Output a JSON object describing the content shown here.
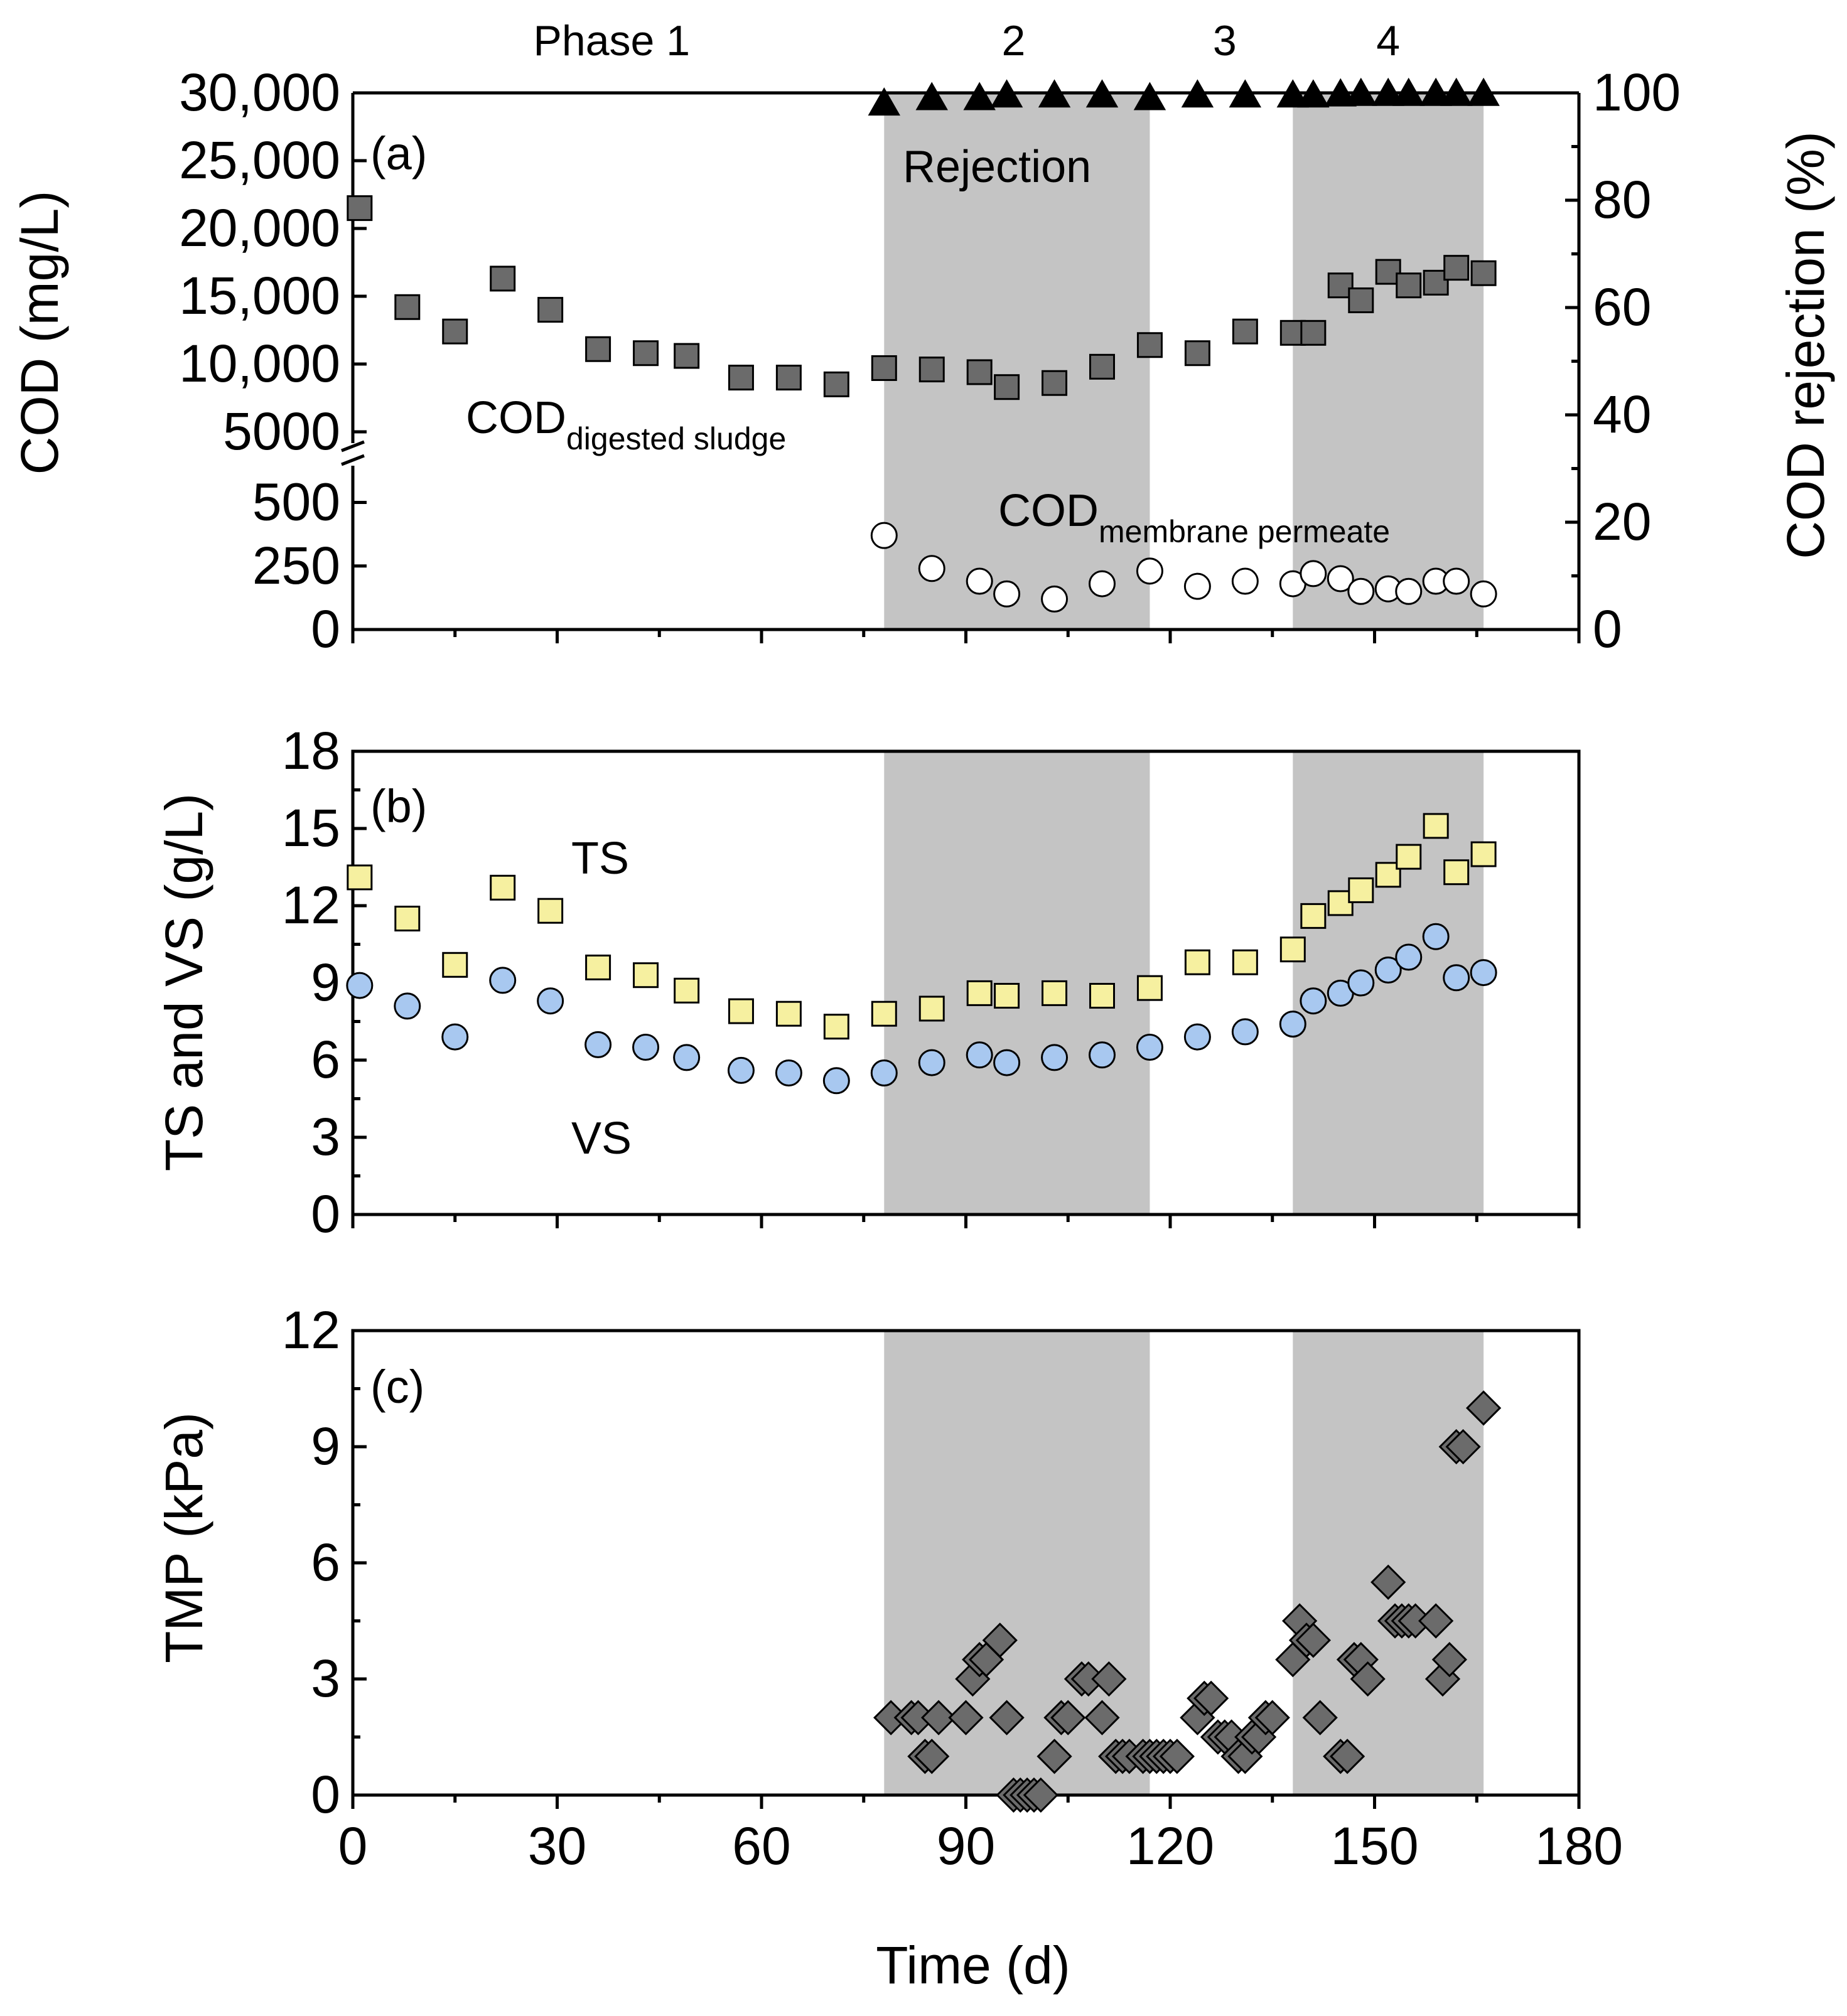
{
  "figure": {
    "xlabel": "Time (d)",
    "xticks": [
      0,
      30,
      60,
      90,
      120,
      150,
      180
    ],
    "xlim": [
      0,
      180
    ]
  },
  "phases": {
    "labels": [
      "Phase 1",
      "2",
      "3",
      "4"
    ],
    "label_day": [
      38,
      97,
      128,
      152
    ],
    "shaded_ranges": [
      [
        78,
        117
      ],
      [
        138,
        166
      ]
    ]
  },
  "chart_data": [
    {
      "panel": "(a)",
      "type": "scatter",
      "ylabel": "COD (mg/L)",
      "ylabel_right": "COD rejection (%)",
      "y_upper": {
        "ylim": [
          5000,
          30000
        ],
        "ticks": [
          5000,
          10000,
          15000,
          20000,
          25000,
          30000
        ],
        "tick_labels": [
          "5000",
          "10,000",
          "15,000",
          "20,000",
          "25,000",
          "30,000"
        ]
      },
      "y_lower": {
        "ylim": [
          0,
          600
        ],
        "ticks": [
          0,
          250,
          500
        ],
        "tick_labels": [
          "0",
          "250",
          "500"
        ]
      },
      "y_right": {
        "ylim": [
          0,
          100
        ],
        "ticks": [
          0,
          20,
          40,
          60,
          80,
          100
        ],
        "tick_labels": [
          "0",
          "20",
          "40",
          "60",
          "80",
          "100"
        ]
      },
      "annotations": {
        "rejection": "Rejection",
        "digested_main": "COD",
        "digested_sub": "digested sludge",
        "permeate_main": "COD",
        "permeate_sub": "membrane permeate"
      },
      "series": [
        {
          "name": "COD digested sludge",
          "axis": "left-upper",
          "marker": "square",
          "color": "#6b6b6b",
          "x": [
            1,
            8,
            15,
            22,
            29,
            36,
            43,
            49,
            57,
            64,
            71,
            78,
            85,
            92,
            96,
            103,
            110,
            117,
            124,
            131,
            138,
            141,
            145,
            148,
            152,
            155,
            159,
            162,
            166
          ],
          "y": [
            21500,
            14200,
            12400,
            16300,
            14000,
            11100,
            10800,
            10600,
            9000,
            9000,
            8500,
            9700,
            9600,
            9400,
            8300,
            8600,
            9800,
            11400,
            10800,
            12400,
            12300,
            12300,
            15800,
            14700,
            16800,
            15800,
            16000,
            17100,
            16700
          ]
        },
        {
          "name": "COD membrane permeate",
          "axis": "left-lower",
          "marker": "circle",
          "color": "#ffffff",
          "x": [
            78,
            85,
            92,
            96,
            103,
            110,
            117,
            124,
            131,
            138,
            141,
            145,
            148,
            152,
            155,
            159,
            162,
            166
          ],
          "y": [
            370,
            240,
            190,
            140,
            120,
            180,
            230,
            170,
            190,
            180,
            220,
            200,
            150,
            160,
            150,
            190,
            190,
            140
          ]
        },
        {
          "name": "Rejection",
          "axis": "right",
          "marker": "triangle",
          "color": "#000000",
          "x": [
            78,
            85,
            92,
            96,
            103,
            110,
            117,
            124,
            131,
            138,
            141,
            145,
            148,
            152,
            155,
            159,
            162,
            166
          ],
          "y": [
            98,
            99,
            99,
            99.5,
            99.5,
            99.5,
            99,
            99.5,
            99.5,
            99.5,
            99.5,
            99.7,
            99.8,
            99.8,
            99.8,
            99.8,
            99.8,
            99.8
          ]
        }
      ]
    },
    {
      "panel": "(b)",
      "type": "scatter",
      "ylabel": "TS and VS (g/L)",
      "ylim": [
        0,
        18
      ],
      "yticks": [
        0,
        3,
        6,
        9,
        12,
        15,
        18
      ],
      "annotations": {
        "ts": "TS",
        "vs": "VS"
      },
      "series": [
        {
          "name": "TS",
          "marker": "square",
          "color": "#f6f0a0",
          "x": [
            1,
            8,
            15,
            22,
            29,
            36,
            43,
            49,
            57,
            64,
            71,
            78,
            85,
            92,
            96,
            103,
            110,
            117,
            124,
            131,
            138,
            141,
            145,
            148,
            152,
            155,
            159,
            162,
            166
          ],
          "y": [
            13.1,
            11.5,
            9.7,
            12.7,
            11.8,
            9.6,
            9.3,
            8.7,
            7.9,
            7.8,
            7.3,
            7.8,
            8.0,
            8.6,
            8.5,
            8.6,
            8.5,
            8.8,
            9.8,
            9.8,
            10.3,
            11.6,
            12.1,
            12.6,
            13.2,
            13.9,
            15.1,
            13.3,
            14.0
          ]
        },
        {
          "name": "VS",
          "marker": "circle",
          "color": "#a8c8f0",
          "x": [
            1,
            8,
            15,
            22,
            29,
            36,
            43,
            49,
            57,
            64,
            71,
            78,
            85,
            92,
            96,
            103,
            110,
            117,
            124,
            131,
            138,
            141,
            145,
            148,
            152,
            155,
            159,
            162,
            166
          ],
          "y": [
            8.9,
            8.1,
            6.9,
            9.1,
            8.3,
            6.6,
            6.5,
            6.1,
            5.6,
            5.5,
            5.2,
            5.5,
            5.9,
            6.2,
            5.9,
            6.1,
            6.2,
            6.5,
            6.9,
            7.1,
            7.4,
            8.3,
            8.6,
            9.0,
            9.5,
            10.0,
            10.8,
            9.2,
            9.4
          ]
        }
      ]
    },
    {
      "panel": "(c)",
      "type": "scatter",
      "ylabel": "TMP (kPa)",
      "ylim": [
        0,
        12
      ],
      "yticks": [
        0,
        3,
        6,
        9,
        12
      ],
      "series": [
        {
          "name": "TMP",
          "marker": "diamond",
          "color": "#6b6b6b",
          "x": [
            79,
            82,
            83,
            84,
            85,
            86,
            90,
            91,
            92,
            93,
            95,
            96,
            97,
            98,
            99,
            100,
            101,
            103,
            104,
            105,
            107,
            108,
            110,
            111,
            112,
            113,
            114,
            116,
            117,
            118,
            119,
            120,
            121,
            124,
            125,
            126,
            127,
            128,
            129,
            130,
            131,
            132,
            133,
            134,
            135,
            138,
            139,
            140,
            141,
            142,
            145,
            146,
            147,
            148,
            149,
            152,
            153,
            154,
            155,
            156,
            159,
            160,
            161,
            162,
            163,
            166
          ],
          "y": [
            2.0,
            2.0,
            2.0,
            1.0,
            1.0,
            2.0,
            2.0,
            3.0,
            3.5,
            3.5,
            4.0,
            2.0,
            0.0,
            0.0,
            0.0,
            0.0,
            0.0,
            1.0,
            2.0,
            2.0,
            3.0,
            3.0,
            2.0,
            3.0,
            1.0,
            1.0,
            1.0,
            1.0,
            1.0,
            1.0,
            1.0,
            1.0,
            1.0,
            2.0,
            2.5,
            2.5,
            1.5,
            1.5,
            1.5,
            1.0,
            1.0,
            1.5,
            1.5,
            2.0,
            2.0,
            3.5,
            4.5,
            4.0,
            4.0,
            2.0,
            1.0,
            1.0,
            3.5,
            3.5,
            3.0,
            5.5,
            4.5,
            4.5,
            4.5,
            4.5,
            4.5,
            3.0,
            3.5,
            9.0,
            9.0,
            10.0
          ]
        }
      ]
    }
  ]
}
